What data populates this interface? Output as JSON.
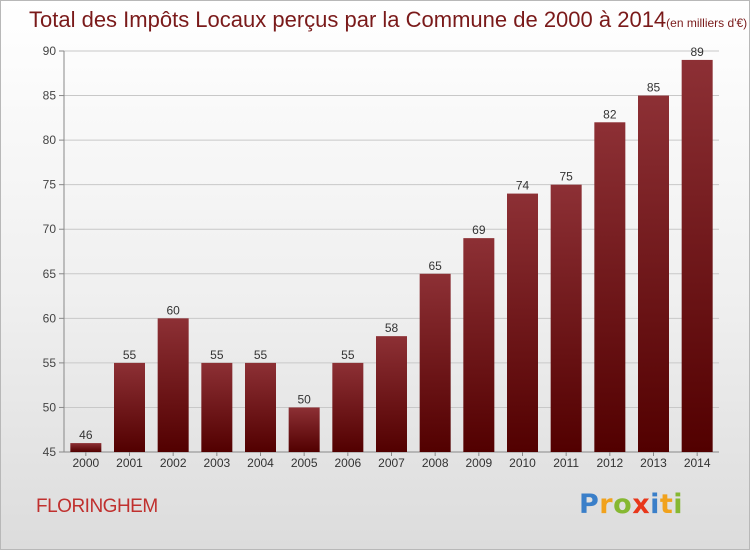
{
  "title": "Total des Impôts Locaux perçus par la Commune de 2000 à 2014",
  "title_unit": "(en milliers d'€)",
  "commune": "FLORINGHEM",
  "logo": {
    "letters": [
      "P",
      "r",
      "o",
      "x",
      "i",
      "t",
      "i"
    ],
    "colors": [
      "#3a7fc9",
      "#f1a21c",
      "#86b832",
      "#e8371b",
      "#3a7fc9",
      "#f1a21c",
      "#86b832"
    ]
  },
  "colors": {
    "bar_top": "#8d3035",
    "bar_bottom": "#520000",
    "title": "#7a1a1a",
    "commune": "#c0302e"
  },
  "chart_data": {
    "type": "bar",
    "categories": [
      "2000",
      "2001",
      "2002",
      "2003",
      "2004",
      "2005",
      "2006",
      "2007",
      "2008",
      "2009",
      "2010",
      "2011",
      "2012",
      "2013",
      "2014"
    ],
    "values": [
      46,
      55,
      60,
      55,
      55,
      50,
      55,
      58,
      65,
      69,
      74,
      75,
      82,
      85,
      89
    ],
    "ylim": [
      45,
      90
    ],
    "yticks": [
      45,
      50,
      55,
      60,
      65,
      70,
      75,
      80,
      85,
      90
    ],
    "grid": true,
    "xlabel": "",
    "ylabel": ""
  }
}
